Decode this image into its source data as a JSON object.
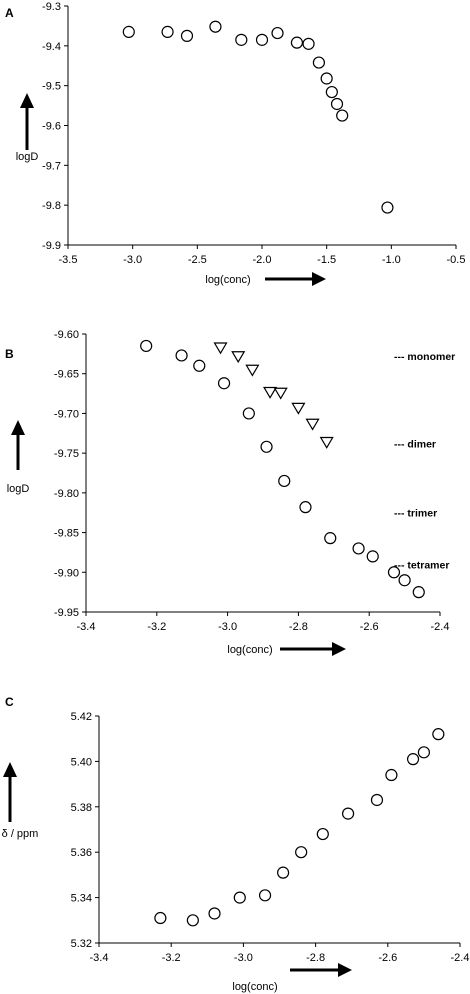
{
  "chart_data": [
    {
      "type": "scatter",
      "panel": "A",
      "xlabel": "log(conc)",
      "ylabel": "logD",
      "xlim": [
        -3.5,
        -0.5
      ],
      "ylim": [
        -9.9,
        -9.3
      ],
      "xticks": [
        "-3.5",
        "-3.0",
        "-2.5",
        "-2.0",
        "-1.5",
        "-1.0",
        "-0.5"
      ],
      "yticks": [
        "-9.3",
        "-9.4",
        "-9.5",
        "-9.6",
        "-9.7",
        "-9.8",
        "-9.9"
      ],
      "series": [
        {
          "marker": "circle",
          "x": [
            -3.03,
            -2.73,
            -2.58,
            -2.36,
            -2.16,
            -2.0,
            -1.88,
            -1.73,
            -1.64,
            -1.56,
            -1.5,
            -1.46,
            -1.42,
            -1.38,
            -1.03
          ],
          "y": [
            -9.365,
            -9.365,
            -9.375,
            -9.352,
            -9.385,
            -9.385,
            -9.368,
            -9.392,
            -9.395,
            -9.442,
            -9.482,
            -9.516,
            -9.546,
            -9.575,
            -9.806
          ]
        }
      ]
    },
    {
      "type": "scatter",
      "panel": "B",
      "xlabel": "log(conc)",
      "ylabel": "logD",
      "xlim": [
        -3.4,
        -2.4
      ],
      "ylim": [
        -9.95,
        -9.6
      ],
      "xticks": [
        "-3.4",
        "-3.2",
        "-3.0",
        "-2.8",
        "-2.6",
        "-2.4"
      ],
      "yticks": [
        "-9.60",
        "-9.65",
        "-9.70",
        "-9.75",
        "-9.80",
        "-9.85",
        "-9.90",
        "-9.95"
      ],
      "series": [
        {
          "marker": "circle",
          "x": [
            -3.23,
            -3.13,
            -3.08,
            -3.01,
            -2.94,
            -2.89,
            -2.84,
            -2.78,
            -2.71,
            -2.63,
            -2.59,
            -2.53,
            -2.5,
            -2.46
          ],
          "y": [
            -9.615,
            -9.627,
            -9.64,
            -9.662,
            -9.7,
            -9.742,
            -9.785,
            -9.818,
            -9.857,
            -9.87,
            -9.88,
            -9.9,
            -9.91,
            -9.925
          ]
        },
        {
          "marker": "triangle-down",
          "x": [
            -3.02,
            -2.97,
            -2.93,
            -2.88,
            -2.85,
            -2.8,
            -2.76,
            -2.72
          ],
          "y": [
            -9.617,
            -9.628,
            -9.645,
            -9.673,
            -9.674,
            -9.693,
            -9.713,
            -9.736
          ]
        }
      ],
      "annotations": [
        {
          "text": "--- monomer",
          "y": -9.628
        },
        {
          "text": "--- dimer",
          "y": -9.738
        },
        {
          "text": "--- trimer",
          "y": -9.825
        },
        {
          "text": "--- tetramer",
          "y": -9.89
        }
      ]
    },
    {
      "type": "scatter",
      "panel": "C",
      "xlabel": "log(conc)",
      "ylabel": "δ / ppm",
      "xlim": [
        -3.4,
        -2.4
      ],
      "ylim": [
        5.32,
        5.42
      ],
      "xticks": [
        "-3.4",
        "-3.2",
        "-3.0",
        "-2.8",
        "-2.6",
        "-2.4"
      ],
      "yticks": [
        "5.42",
        "5.40",
        "5.38",
        "5.36",
        "5.34",
        "5.32"
      ],
      "series": [
        {
          "marker": "circle",
          "x": [
            -3.23,
            -3.14,
            -3.08,
            -3.01,
            -2.94,
            -2.89,
            -2.84,
            -2.78,
            -2.71,
            -2.63,
            -2.59,
            -2.53,
            -2.5,
            -2.46
          ],
          "y": [
            5.331,
            5.33,
            5.333,
            5.34,
            5.341,
            5.351,
            5.36,
            5.368,
            5.377,
            5.383,
            5.394,
            5.401,
            5.404,
            5.412
          ]
        }
      ]
    }
  ]
}
